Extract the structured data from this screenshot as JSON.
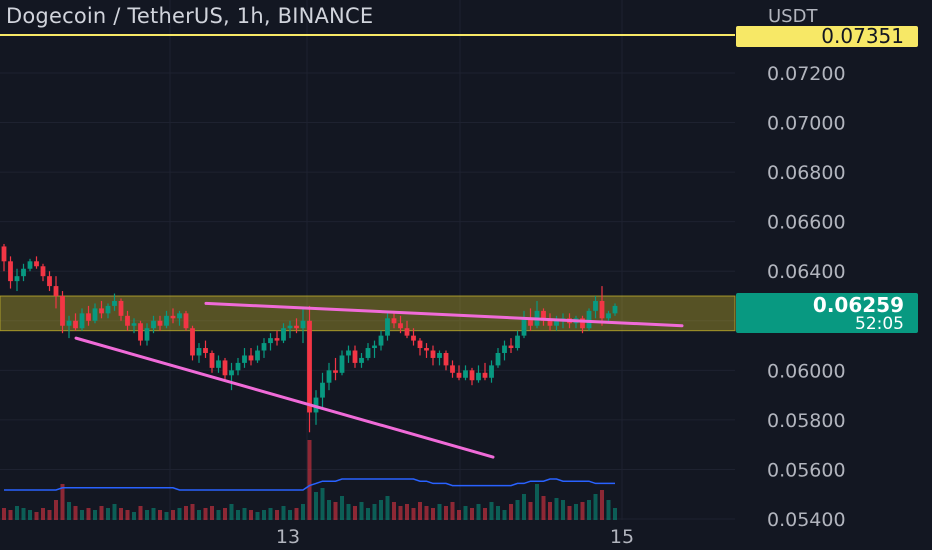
{
  "header": {
    "title": "Dogecoin / TetherUS, 1h, BINANCE"
  },
  "axis": {
    "currency": "USDT"
  },
  "price_label": {
    "value": "0.06259",
    "countdown": "52:05"
  },
  "alert_label": {
    "value": "0.07351"
  },
  "colors": {
    "background": "#131722",
    "up": "#089981",
    "down": "#f23645",
    "zone": "#d4c02c",
    "trendline": "#f06bd8",
    "alert": "#f7e866",
    "volume_ma": "#2962ff"
  },
  "chart_data": {
    "type": "candlestick",
    "symbol": "DOGE/USDT",
    "interval": "1h",
    "y_axis": {
      "ticks": [
        "0.07200",
        "0.07000",
        "0.06800",
        "0.06600",
        "0.06400",
        "0.06200",
        "0.06000",
        "0.05800",
        "0.05600",
        "0.05400"
      ],
      "range": [
        0.054,
        0.0735
      ]
    },
    "x_axis": {
      "ticks": [
        "13",
        "15"
      ]
    },
    "horizontal_lines": [
      {
        "price": 0.07351,
        "kind": "alert"
      }
    ],
    "zone": {
      "from": 0.0616,
      "to": 0.063
    },
    "trendlines": [
      {
        "from": [
          0,
          0.0613
        ],
        "to": [
          76,
          0.0565
        ]
      },
      {
        "from": [
          20,
          0.0627
        ],
        "to": [
          112,
          0.0618
        ]
      }
    ],
    "candles": [
      [
        0.065,
        0.0651,
        0.064,
        0.0644
      ],
      [
        0.0644,
        0.0646,
        0.0633,
        0.0636
      ],
      [
        0.0636,
        0.0641,
        0.0632,
        0.0638
      ],
      [
        0.0638,
        0.0643,
        0.0636,
        0.0641
      ],
      [
        0.0641,
        0.0645,
        0.064,
        0.0644
      ],
      [
        0.0644,
        0.0646,
        0.0641,
        0.0642
      ],
      [
        0.0642,
        0.0643,
        0.0636,
        0.0638
      ],
      [
        0.0638,
        0.064,
        0.0632,
        0.0634
      ],
      [
        0.0634,
        0.0638,
        0.0625,
        0.063
      ],
      [
        0.063,
        0.0632,
        0.0615,
        0.0618
      ],
      [
        0.0618,
        0.0622,
        0.0613,
        0.062
      ],
      [
        0.062,
        0.0623,
        0.0616,
        0.0617
      ],
      [
        0.0617,
        0.0625,
        0.0616,
        0.0623
      ],
      [
        0.0623,
        0.0626,
        0.0618,
        0.062
      ],
      [
        0.062,
        0.0627,
        0.0619,
        0.0625
      ],
      [
        0.0625,
        0.0628,
        0.0621,
        0.0623
      ],
      [
        0.0623,
        0.0627,
        0.0621,
        0.0626
      ],
      [
        0.0626,
        0.0631,
        0.0624,
        0.0628
      ],
      [
        0.0628,
        0.0629,
        0.062,
        0.0622
      ],
      [
        0.0622,
        0.0624,
        0.0616,
        0.0618
      ],
      [
        0.0618,
        0.0621,
        0.0615,
        0.0619
      ],
      [
        0.0619,
        0.062,
        0.061,
        0.0612
      ],
      [
        0.0612,
        0.0619,
        0.061,
        0.0617
      ],
      [
        0.0617,
        0.0622,
        0.0615,
        0.062
      ],
      [
        0.062,
        0.0622,
        0.0616,
        0.0618
      ],
      [
        0.0618,
        0.0624,
        0.0617,
        0.0622
      ],
      [
        0.0622,
        0.0625,
        0.0619,
        0.0621
      ],
      [
        0.0621,
        0.0624,
        0.0618,
        0.0623
      ],
      [
        0.0623,
        0.0624,
        0.0616,
        0.0617
      ],
      [
        0.0617,
        0.0618,
        0.0604,
        0.0606
      ],
      [
        0.0606,
        0.0611,
        0.0603,
        0.0609
      ],
      [
        0.0609,
        0.0612,
        0.0605,
        0.0607
      ],
      [
        0.0607,
        0.0608,
        0.0599,
        0.0601
      ],
      [
        0.0601,
        0.0606,
        0.0599,
        0.0604
      ],
      [
        0.0604,
        0.0605,
        0.0596,
        0.0598
      ],
      [
        0.0598,
        0.0603,
        0.0592,
        0.06
      ],
      [
        0.06,
        0.0605,
        0.0598,
        0.0603
      ],
      [
        0.0603,
        0.0609,
        0.0601,
        0.0606
      ],
      [
        0.0606,
        0.0609,
        0.0602,
        0.0604
      ],
      [
        0.0604,
        0.061,
        0.0603,
        0.0608
      ],
      [
        0.0608,
        0.0613,
        0.0605,
        0.0611
      ],
      [
        0.0611,
        0.0615,
        0.0608,
        0.0613
      ],
      [
        0.0613,
        0.0616,
        0.061,
        0.0612
      ],
      [
        0.0612,
        0.0619,
        0.0611,
        0.0617
      ],
      [
        0.0617,
        0.062,
        0.0613,
        0.0618
      ],
      [
        0.0618,
        0.0621,
        0.0615,
        0.0617
      ],
      [
        0.0617,
        0.0625,
        0.0611,
        0.062
      ],
      [
        0.062,
        0.0626,
        0.0575,
        0.0583
      ],
      [
        0.0583,
        0.0592,
        0.0578,
        0.0589
      ],
      [
        0.0589,
        0.0599,
        0.0585,
        0.0595
      ],
      [
        0.0595,
        0.0603,
        0.0592,
        0.06
      ],
      [
        0.06,
        0.0605,
        0.0596,
        0.0599
      ],
      [
        0.0599,
        0.0608,
        0.0598,
        0.0606
      ],
      [
        0.0606,
        0.061,
        0.0603,
        0.0608
      ],
      [
        0.0608,
        0.061,
        0.0601,
        0.0603
      ],
      [
        0.0603,
        0.0607,
        0.0601,
        0.0605
      ],
      [
        0.0605,
        0.0611,
        0.0604,
        0.0609
      ],
      [
        0.0609,
        0.0612,
        0.0605,
        0.061
      ],
      [
        0.061,
        0.0616,
        0.0608,
        0.0614
      ],
      [
        0.0614,
        0.0623,
        0.0612,
        0.0621
      ],
      [
        0.0621,
        0.0624,
        0.0617,
        0.0619
      ],
      [
        0.0619,
        0.0622,
        0.0615,
        0.0617
      ],
      [
        0.0617,
        0.062,
        0.0613,
        0.0614
      ],
      [
        0.0614,
        0.0617,
        0.061,
        0.0612
      ],
      [
        0.0612,
        0.0613,
        0.0606,
        0.0609
      ],
      [
        0.0609,
        0.0611,
        0.0605,
        0.0608
      ],
      [
        0.0608,
        0.061,
        0.0602,
        0.0605
      ],
      [
        0.0605,
        0.0608,
        0.0602,
        0.0607
      ],
      [
        0.0607,
        0.0608,
        0.06,
        0.0602
      ],
      [
        0.0602,
        0.0604,
        0.0597,
        0.0599
      ],
      [
        0.0599,
        0.0602,
        0.0596,
        0.0597
      ],
      [
        0.0597,
        0.0602,
        0.0596,
        0.06
      ],
      [
        0.06,
        0.0601,
        0.0594,
        0.0596
      ],
      [
        0.0596,
        0.0602,
        0.0595,
        0.0599
      ],
      [
        0.0599,
        0.0603,
        0.0596,
        0.0597
      ],
      [
        0.0597,
        0.0604,
        0.0595,
        0.0602
      ],
      [
        0.0602,
        0.0609,
        0.0601,
        0.0607
      ],
      [
        0.0607,
        0.0612,
        0.0604,
        0.061
      ],
      [
        0.061,
        0.0613,
        0.0607,
        0.0609
      ],
      [
        0.0609,
        0.0616,
        0.0608,
        0.0614
      ],
      [
        0.0614,
        0.0624,
        0.0613,
        0.0621
      ],
      [
        0.0621,
        0.0625,
        0.0616,
        0.0618
      ],
      [
        0.0618,
        0.0628,
        0.0617,
        0.0624
      ],
      [
        0.0624,
        0.0625,
        0.0618,
        0.062
      ],
      [
        0.062,
        0.0623,
        0.0616,
        0.0618
      ],
      [
        0.0618,
        0.0622,
        0.0616,
        0.062
      ],
      [
        0.062,
        0.0623,
        0.0617,
        0.0621
      ],
      [
        0.0621,
        0.0623,
        0.0617,
        0.0619
      ],
      [
        0.0619,
        0.0622,
        0.0617,
        0.0621
      ],
      [
        0.0621,
        0.0622,
        0.0615,
        0.0617
      ],
      [
        0.0617,
        0.0625,
        0.0616,
        0.0624
      ],
      [
        0.0624,
        0.063,
        0.0621,
        0.0628
      ],
      [
        0.0628,
        0.0634,
        0.0618,
        0.0621
      ],
      [
        0.0621,
        0.0624,
        0.0619,
        0.0623
      ],
      [
        0.0623,
        0.0627,
        0.0622,
        0.0626
      ]
    ],
    "volumes": [
      6,
      5,
      7,
      6,
      5,
      4,
      6,
      5,
      10,
      18,
      9,
      7,
      5,
      6,
      5,
      7,
      6,
      8,
      6,
      5,
      4,
      7,
      5,
      6,
      5,
      4,
      5,
      6,
      7,
      8,
      5,
      6,
      7,
      5,
      6,
      8,
      5,
      6,
      5,
      4,
      5,
      6,
      5,
      7,
      5,
      6,
      8,
      40,
      14,
      16,
      10,
      9,
      12,
      8,
      7,
      9,
      6,
      8,
      10,
      12,
      9,
      7,
      8,
      6,
      9,
      7,
      6,
      8,
      7,
      9,
      5,
      7,
      6,
      8,
      6,
      9,
      7,
      5,
      8,
      10,
      13,
      9,
      18,
      12,
      9,
      11,
      10,
      7,
      8,
      9,
      10,
      13,
      15,
      10,
      6
    ],
    "volume_ma": [
      4,
      4,
      4,
      4,
      4,
      4,
      4,
      4,
      4,
      5,
      5,
      5,
      5,
      5,
      5,
      5,
      5,
      5,
      5,
      5,
      5,
      5,
      5,
      5,
      5,
      5,
      5,
      4,
      4,
      4,
      4,
      4,
      4,
      4,
      4,
      4,
      4,
      4,
      4,
      4,
      4,
      4,
      4,
      4,
      4,
      4,
      4,
      6,
      7,
      8,
      8,
      8,
      9,
      9,
      9,
      9,
      9,
      9,
      9,
      9,
      9,
      9,
      9,
      9,
      8,
      8,
      7,
      7,
      7,
      6,
      6,
      6,
      6,
      6,
      6,
      6,
      6,
      6,
      6,
      7,
      7,
      8,
      8,
      8,
      9,
      9,
      8,
      8,
      8,
      8,
      8,
      7,
      7,
      7,
      7
    ]
  }
}
